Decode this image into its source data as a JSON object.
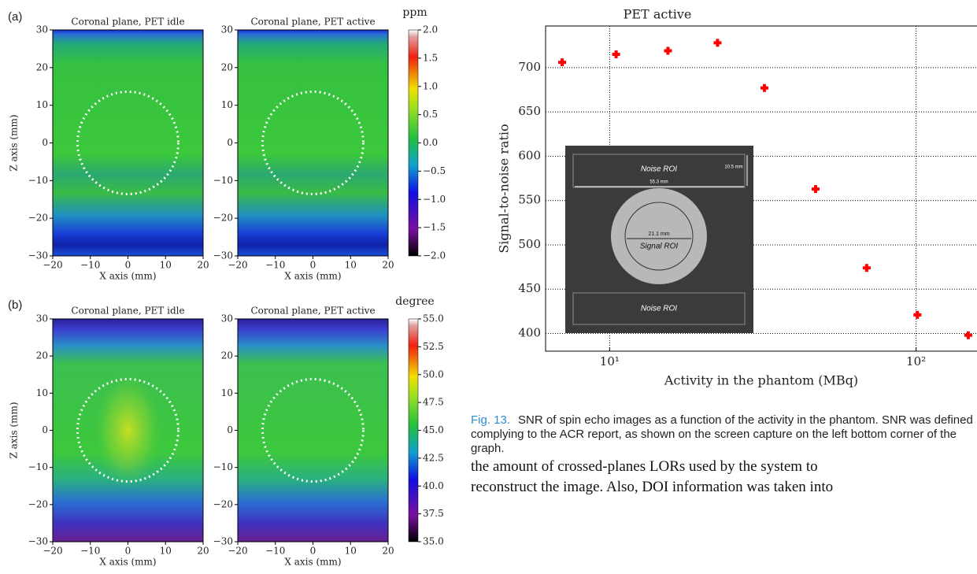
{
  "panel_labels": [
    "(a)",
    "(b)"
  ],
  "chart_data": [
    {
      "type": "heatmap",
      "title": "Coronal plane, PET idle",
      "xlabel": "X axis (mm)",
      "ylabel": "Z axis (mm)",
      "xlim": [
        -20,
        20
      ],
      "ylim": [
        -30,
        30
      ],
      "xticks": [
        {
          "value": -20,
          "label": "−20"
        },
        {
          "value": -10,
          "label": "−10"
        },
        0,
        10,
        20
      ],
      "yticks": [
        {
          "value": -30,
          "label": "−30"
        },
        {
          "value": -20,
          "label": "−20"
        },
        {
          "value": -10,
          "label": "−10"
        },
        0,
        10,
        20,
        30
      ]
    },
    {
      "type": "heatmap",
      "title": "Coronal plane, PET active",
      "xlabel": "X axis (mm)",
      "xlim": [
        -20,
        20
      ],
      "ylim": [
        -30,
        30
      ],
      "xticks": [
        {
          "value": -20,
          "label": "−20"
        },
        {
          "value": -10,
          "label": "−10"
        },
        0,
        10,
        20
      ],
      "yticks": [
        {
          "value": -30,
          "label": "−30"
        },
        {
          "value": -20,
          "label": "−20"
        },
        {
          "value": -10,
          "label": "−10"
        },
        0,
        10,
        20,
        30
      ]
    },
    {
      "type": "colorbar",
      "label": "ppm",
      "ylim": [
        -2,
        2
      ],
      "yticks": [
        {
          "value": -2,
          "label": "−2.0"
        },
        {
          "value": -1.5,
          "label": "−1.5"
        },
        {
          "value": -1,
          "label": "−1.0"
        },
        {
          "value": -0.5,
          "label": "−0.5"
        },
        {
          "value": 0,
          "label": "0.0"
        },
        0.5,
        {
          "value": 1,
          "label": "1.0"
        },
        1.5,
        {
          "value": 2,
          "label": "2.0"
        }
      ]
    },
    {
      "type": "heatmap",
      "title": "Coronal plane, PET idle",
      "xlabel": "X axis (mm)",
      "ylabel": "Z axis (mm)",
      "xlim": [
        -20,
        20
      ],
      "ylim": [
        -30,
        30
      ],
      "xticks": [
        {
          "value": -20,
          "label": "−20"
        },
        {
          "value": -10,
          "label": "−10"
        },
        0,
        10,
        20
      ],
      "yticks": [
        {
          "value": -30,
          "label": "−30"
        },
        {
          "value": -20,
          "label": "−20"
        },
        {
          "value": -10,
          "label": "−10"
        },
        0,
        10,
        20,
        30
      ]
    },
    {
      "type": "heatmap",
      "title": "Coronal plane, PET active",
      "xlabel": "X axis (mm)",
      "xlim": [
        -20,
        20
      ],
      "ylim": [
        -30,
        30
      ],
      "xticks": [
        {
          "value": -20,
          "label": "−20"
        },
        {
          "value": -10,
          "label": "−10"
        },
        0,
        10,
        20
      ],
      "yticks": [
        {
          "value": -30,
          "label": "−30"
        },
        {
          "value": -20,
          "label": "−20"
        },
        {
          "value": -10,
          "label": "−10"
        },
        0,
        10,
        20,
        30
      ]
    },
    {
      "type": "colorbar",
      "label": "degree",
      "ylim": [
        35,
        55
      ],
      "yticks": [
        {
          "value": 35,
          "label": "35.0"
        },
        37.5,
        {
          "value": 40,
          "label": "40.0"
        },
        42.5,
        {
          "value": 45,
          "label": "45.0"
        },
        47.5,
        {
          "value": 50,
          "label": "50.0"
        },
        52.5,
        {
          "value": 55,
          "label": "55.0"
        }
      ]
    },
    {
      "type": "scatter",
      "title": "PET active",
      "xlabel": "Activity in the phantom (MBq)",
      "ylabel": "Signal-to-noise ratio",
      "xscale": "log",
      "xlim": [
        6.18,
        166.7
      ],
      "ylim": [
        380,
        747
      ],
      "xticks": [
        {
          "value": 10,
          "label": "10¹"
        },
        {
          "value": 100,
          "label": "10²"
        }
      ],
      "yticks": [
        400,
        450,
        500,
        550,
        600,
        650,
        700
      ],
      "grid": true,
      "color": "#ff0000",
      "x": [
        7,
        10.5,
        15.5,
        22.5,
        32,
        47,
        69,
        101,
        148
      ],
      "values": [
        706,
        715,
        719,
        728,
        677,
        563,
        474,
        421,
        398
      ]
    }
  ],
  "inset": {
    "noise_top": "Noise ROI",
    "height": "10.5 mm",
    "width": "55.3 mm",
    "diameter": "21.1 mm",
    "signal": "Signal ROI",
    "noise_bottom": "Noise ROI"
  },
  "caption": {
    "label": "Fig. 13.",
    "text": "SNR of spin echo images as a function of the activity in the phantom. SNR was defined complying to the ACR report, as shown on the screen capture on the left bottom corner of the graph."
  },
  "body_text": [
    "the amount of crossed-planes LORs used by the system to",
    "reconstruct the image. Also, DOI information was taken into"
  ]
}
